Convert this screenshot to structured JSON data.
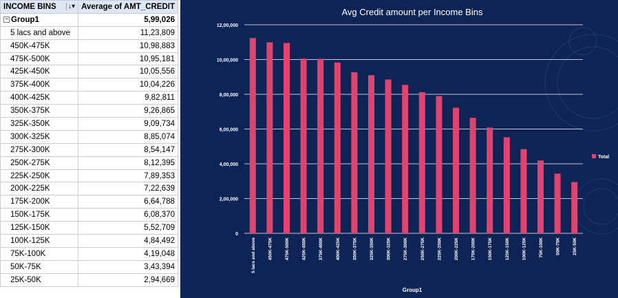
{
  "table": {
    "header_col1": "INCOME BINS",
    "header_col2": "Average of AMT_CREDIT",
    "group_label": "Group1",
    "group_value": "5,99,026",
    "rows": [
      {
        "label": "5 lacs and above",
        "value": "11,23,809"
      },
      {
        "label": "450K-475K",
        "value": "10,98,883"
      },
      {
        "label": "475K-500K",
        "value": "10,95,181"
      },
      {
        "label": "425K-450K",
        "value": "10,05,556"
      },
      {
        "label": "375K-400K",
        "value": "10,04,226"
      },
      {
        "label": "400K-425K",
        "value": "9,82,811"
      },
      {
        "label": "350K-375K",
        "value": "9,26,865"
      },
      {
        "label": "325K-350K",
        "value": "9,09,734"
      },
      {
        "label": "300K-325K",
        "value": "8,85,074"
      },
      {
        "label": "275K-300K",
        "value": "8,54,147"
      },
      {
        "label": "250K-275K",
        "value": "8,12,395"
      },
      {
        "label": "225K-250K",
        "value": "7,89,353"
      },
      {
        "label": "200K-225K",
        "value": "7,22,639"
      },
      {
        "label": "175K-200K",
        "value": "6,64,788"
      },
      {
        "label": "150K-175K",
        "value": "6,08,370"
      },
      {
        "label": "125K-150K",
        "value": "5,52,709"
      },
      {
        "label": "100K-125K",
        "value": "4,84,492"
      },
      {
        "label": "75K-100K",
        "value": "4,19,048"
      },
      {
        "label": "50K-75K",
        "value": "3,43,394"
      },
      {
        "label": "25K-50K",
        "value": "2,94,669"
      }
    ]
  },
  "colors": {
    "panel_background": "#0f2456",
    "bar": "#e0436e",
    "text": "#ffffff",
    "gridline": "#ffffff"
  },
  "chart_data": {
    "type": "bar",
    "title": "Avg Credit amount per Income Bins",
    "xlabel": "Group1",
    "ylabel": "",
    "legend": [
      "Total"
    ],
    "legend_position": "right",
    "grid": true,
    "ylim": [
      0,
      1200000
    ],
    "yticks": [
      0,
      200000,
      400000,
      600000,
      800000,
      1000000,
      1200000
    ],
    "ytick_labels": [
      "0",
      "2,00,000",
      "4,00,000",
      "6,00,000",
      "8,00,000",
      "10,00,000",
      "12,00,000"
    ],
    "categories": [
      "5 lacs and above",
      "450K-475K",
      "475K-500K",
      "425K-450K",
      "375K-400K",
      "400K-425K",
      "350K-375K",
      "325K-350K",
      "300K-325K",
      "275K-300K",
      "250K-275K",
      "225K-250K",
      "200K-225K",
      "175K-200K",
      "150K-175K",
      "125K-150K",
      "100K-125K",
      "75K-100K",
      "50K-75K",
      "25K-50K"
    ],
    "series": [
      {
        "name": "Total",
        "values": [
          1123809,
          1098883,
          1095181,
          1005556,
          1004226,
          982811,
          926865,
          909734,
          885074,
          854147,
          812395,
          789353,
          722639,
          664788,
          608370,
          552709,
          484492,
          419048,
          343394,
          294669
        ]
      }
    ]
  }
}
